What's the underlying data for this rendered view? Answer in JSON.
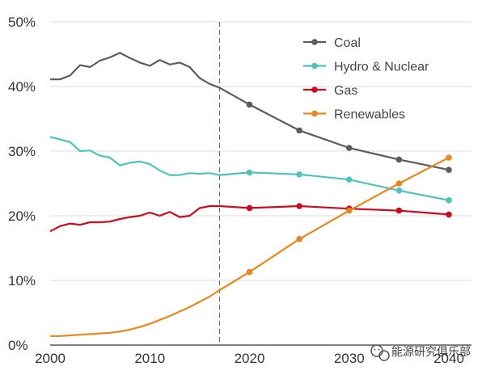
{
  "chart_data": {
    "type": "line",
    "x": [
      2000,
      2001,
      2002,
      2003,
      2004,
      2005,
      2006,
      2007,
      2008,
      2009,
      2010,
      2011,
      2012,
      2013,
      2014,
      2015,
      2016,
      2017,
      2020,
      2025,
      2030,
      2035,
      2040
    ],
    "xlim": [
      2000,
      2040
    ],
    "ylim": [
      0,
      50
    ],
    "x_ticks": [
      {
        "value": 2000,
        "label": "2000"
      },
      {
        "value": 2010,
        "label": "2010"
      },
      {
        "value": 2020,
        "label": "2020"
      },
      {
        "value": 2030,
        "label": "2030"
      },
      {
        "value": 2040,
        "label": "2040"
      }
    ],
    "y_ticks": [
      {
        "value": 0,
        "label": "0%"
      },
      {
        "value": 10,
        "label": "10%"
      },
      {
        "value": 20,
        "label": "20%"
      },
      {
        "value": 30,
        "label": "30%"
      },
      {
        "value": 40,
        "label": "40%"
      },
      {
        "value": 50,
        "label": "50%"
      }
    ],
    "grid": "horizontal",
    "projection_start": 2017,
    "marker_years": [
      2020,
      2025,
      2030,
      2035,
      2040
    ],
    "legend_position": "top-right",
    "series": [
      {
        "name": "Coal",
        "color": "#5c5c5c",
        "values": [
          41.1,
          41.1,
          41.7,
          43.3,
          43.0,
          44.0,
          44.5,
          45.2,
          44.4,
          43.7,
          43.2,
          44.1,
          43.4,
          43.7,
          43.0,
          41.3,
          40.4,
          39.8,
          37.2,
          33.2,
          30.5,
          28.7,
          27.1
        ]
      },
      {
        "name": "Hydro & Nuclear",
        "color": "#4fc3bb",
        "values": [
          32.2,
          31.8,
          31.4,
          30.0,
          30.1,
          29.3,
          29.0,
          27.8,
          28.2,
          28.4,
          28.0,
          27.0,
          26.3,
          26.3,
          26.6,
          26.5,
          26.6,
          26.3,
          26.7,
          26.4,
          25.6,
          23.9,
          22.4
        ]
      },
      {
        "name": "Gas",
        "color": "#cc0b1e",
        "values": [
          17.6,
          18.4,
          18.8,
          18.6,
          19.0,
          19.0,
          19.1,
          19.5,
          19.8,
          20.0,
          20.5,
          20.0,
          20.6,
          19.8,
          20.0,
          21.2,
          21.5,
          21.5,
          21.2,
          21.5,
          21.1,
          20.8,
          20.2
        ]
      },
      {
        "name": "Renewables",
        "color": "#e8871e",
        "values": [
          1.4,
          1.4,
          1.5,
          1.6,
          1.7,
          1.8,
          1.9,
          2.1,
          2.4,
          2.8,
          3.3,
          3.9,
          4.5,
          5.2,
          5.9,
          6.7,
          7.5,
          8.5,
          11.3,
          16.4,
          20.8,
          25.0,
          29.0
        ]
      }
    ]
  },
  "watermark": {
    "text": "能源研究俱乐部",
    "icon": "wechat-icon"
  }
}
